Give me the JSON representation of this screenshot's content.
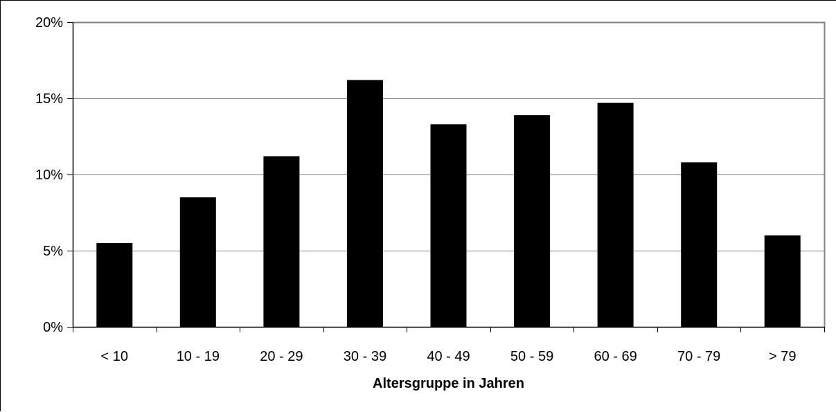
{
  "chart_data": {
    "type": "bar",
    "title": "",
    "xlabel": "Altersgruppe in Jahren",
    "ylabel": "",
    "categories": [
      "< 10",
      "10 - 19",
      "20 - 29",
      "30 - 39",
      "40 - 49",
      "50 - 59",
      "60 - 69",
      "70 - 79",
      "> 79"
    ],
    "values": [
      5.5,
      8.5,
      11.2,
      16.2,
      13.3,
      13.9,
      14.7,
      10.8,
      6.0
    ],
    "ylim": [
      0,
      20
    ],
    "yticks": [
      0,
      5,
      10,
      15,
      20
    ],
    "ytick_labels": [
      "0%",
      "5%",
      "10%",
      "15%",
      "20%"
    ],
    "grid": true,
    "legend": "none",
    "colors": {
      "bar": "#000000",
      "grid": "#808080",
      "plot_border": "#808080",
      "axis": "#808080"
    }
  }
}
